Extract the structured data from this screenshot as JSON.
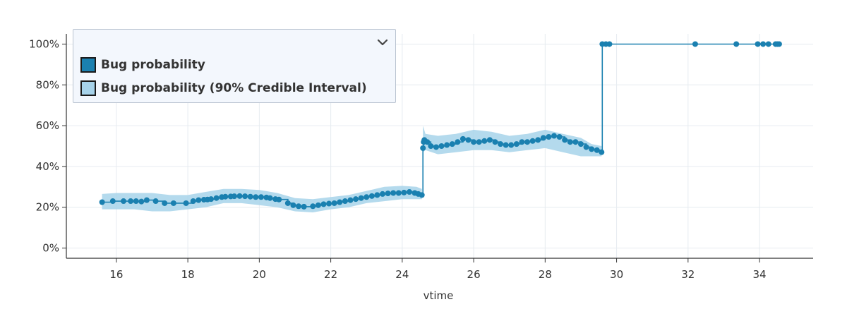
{
  "chart_data": {
    "type": "line",
    "title": "",
    "xlabel": "vtime",
    "ylabel": "",
    "xlim": [
      14.6,
      35.5
    ],
    "ylim": [
      -0.05,
      1.05
    ],
    "x_ticks": [
      16,
      18,
      20,
      22,
      24,
      26,
      28,
      30,
      32,
      34
    ],
    "x_tick_labels": [
      "16",
      "18",
      "20",
      "22",
      "24",
      "26",
      "28",
      "30",
      "32",
      "34"
    ],
    "y_ticks": [
      0,
      0.2,
      0.4,
      0.6,
      0.8,
      1.0
    ],
    "y_tick_labels": [
      "0%",
      "20%",
      "40%",
      "60%",
      "80%",
      "100%"
    ],
    "grid": true,
    "legend_position": "top-left",
    "colors": {
      "line": "#1a80b0",
      "band": "#a7d3ea",
      "grid": "#e6ebf0",
      "axis": "#333333"
    },
    "series": [
      {
        "name": "Bug probability",
        "x": [
          15.6,
          15.9,
          16.2,
          16.4,
          16.55,
          16.7,
          16.85,
          17.1,
          17.35,
          17.6,
          17.95,
          18.15,
          18.3,
          18.45,
          18.55,
          18.65,
          18.8,
          18.95,
          19.05,
          19.2,
          19.3,
          19.45,
          19.6,
          19.75,
          19.9,
          20.05,
          20.2,
          20.3,
          20.45,
          20.55,
          20.8,
          20.95,
          21.1,
          21.25,
          21.5,
          21.65,
          21.8,
          21.95,
          22.1,
          22.25,
          22.4,
          22.55,
          22.7,
          22.85,
          23.0,
          23.15,
          23.3,
          23.45,
          23.6,
          23.75,
          23.9,
          24.05,
          24.2,
          24.35,
          24.45,
          24.55,
          24.58,
          24.6,
          24.62,
          24.7,
          24.8,
          24.95,
          25.1,
          25.25,
          25.4,
          25.55,
          25.7,
          25.85,
          26.0,
          26.15,
          26.3,
          26.45,
          26.6,
          26.75,
          26.9,
          27.05,
          27.2,
          27.35,
          27.5,
          27.65,
          27.8,
          27.95,
          28.1,
          28.25,
          28.4,
          28.55,
          28.7,
          28.85,
          29.0,
          29.15,
          29.3,
          29.45,
          29.58,
          29.6,
          29.7,
          29.8,
          32.2,
          33.35,
          33.95,
          34.1,
          34.25,
          34.45,
          34.5,
          34.55
        ],
        "y": [
          0.225,
          0.23,
          0.23,
          0.23,
          0.23,
          0.228,
          0.235,
          0.23,
          0.22,
          0.22,
          0.22,
          0.23,
          0.235,
          0.237,
          0.238,
          0.24,
          0.245,
          0.25,
          0.252,
          0.253,
          0.254,
          0.255,
          0.254,
          0.252,
          0.25,
          0.25,
          0.248,
          0.245,
          0.24,
          0.238,
          0.22,
          0.21,
          0.205,
          0.203,
          0.205,
          0.21,
          0.215,
          0.218,
          0.22,
          0.225,
          0.23,
          0.235,
          0.24,
          0.245,
          0.25,
          0.255,
          0.26,
          0.265,
          0.268,
          0.27,
          0.27,
          0.272,
          0.275,
          0.27,
          0.265,
          0.26,
          0.49,
          0.52,
          0.53,
          0.52,
          0.5,
          0.495,
          0.5,
          0.505,
          0.51,
          0.52,
          0.535,
          0.53,
          0.52,
          0.52,
          0.525,
          0.53,
          0.52,
          0.51,
          0.505,
          0.505,
          0.51,
          0.52,
          0.52,
          0.525,
          0.53,
          0.54,
          0.545,
          0.55,
          0.545,
          0.53,
          0.52,
          0.52,
          0.51,
          0.495,
          0.485,
          0.48,
          0.47,
          1.0,
          1.0,
          1.0,
          1.0,
          1.0,
          1.0,
          1.0,
          1.0,
          1.0,
          1.0,
          1.0
        ]
      },
      {
        "name": "Bug probability (90% Credible Interval)",
        "x": [
          15.6,
          16.0,
          16.5,
          17.0,
          17.5,
          18.0,
          18.5,
          19.0,
          19.5,
          20.0,
          20.5,
          21.0,
          21.5,
          22.0,
          22.5,
          23.0,
          23.5,
          24.0,
          24.4,
          24.55,
          24.58,
          24.65,
          25.0,
          25.5,
          26.0,
          26.5,
          27.0,
          27.5,
          28.0,
          28.5,
          29.0,
          29.3,
          29.58
        ],
        "lower": [
          0.19,
          0.19,
          0.19,
          0.18,
          0.18,
          0.19,
          0.2,
          0.22,
          0.22,
          0.21,
          0.2,
          0.18,
          0.175,
          0.19,
          0.2,
          0.22,
          0.23,
          0.24,
          0.24,
          0.24,
          0.47,
          0.48,
          0.46,
          0.47,
          0.48,
          0.48,
          0.47,
          0.48,
          0.49,
          0.47,
          0.45,
          0.45,
          0.45
        ],
        "upper": [
          0.265,
          0.27,
          0.27,
          0.27,
          0.26,
          0.26,
          0.275,
          0.29,
          0.29,
          0.285,
          0.27,
          0.245,
          0.24,
          0.25,
          0.26,
          0.28,
          0.3,
          0.305,
          0.3,
          0.29,
          0.6,
          0.56,
          0.55,
          0.56,
          0.58,
          0.57,
          0.55,
          0.56,
          0.58,
          0.56,
          0.54,
          0.51,
          0.5
        ]
      }
    ]
  },
  "legend": {
    "items": [
      {
        "label": "Bug probability",
        "swatch_color": "#1a80b0"
      },
      {
        "label": "Bug probability (90% Credible Interval)",
        "swatch_color": "#a7d3ea"
      }
    ],
    "toggle_icon": "chevron-down-icon"
  }
}
